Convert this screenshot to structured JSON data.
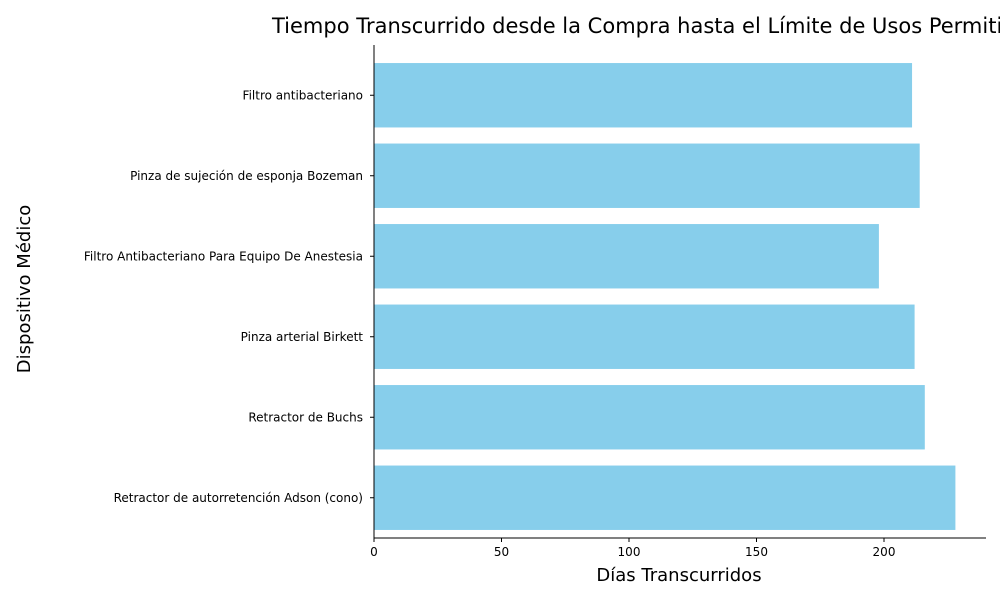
{
  "chart_data": {
    "type": "bar",
    "orientation": "horizontal",
    "title": "Tiempo Transcurrido desde la Compra hasta el Límite de Usos Permitidos",
    "xlabel": "Días Transcurridos",
    "ylabel": "Dispositivo Médico",
    "categories": [
      "Filtro antibacteriano",
      "Pinza de sujeción de esponja Bozeman",
      "Filtro Antibacteriano Para Equipo De Anestesia",
      "Pinza arterial Birkett",
      "Retractor de Buchs",
      "Retractor de autorretención Adson (cono)"
    ],
    "values": [
      211,
      214,
      198,
      212,
      216,
      228
    ],
    "xlim": [
      0,
      240
    ],
    "xticks": [
      0,
      50,
      100,
      150,
      200
    ],
    "grid": false,
    "legend": "none",
    "bar_color": "#87ceeb",
    "axis_color": "#000000"
  }
}
